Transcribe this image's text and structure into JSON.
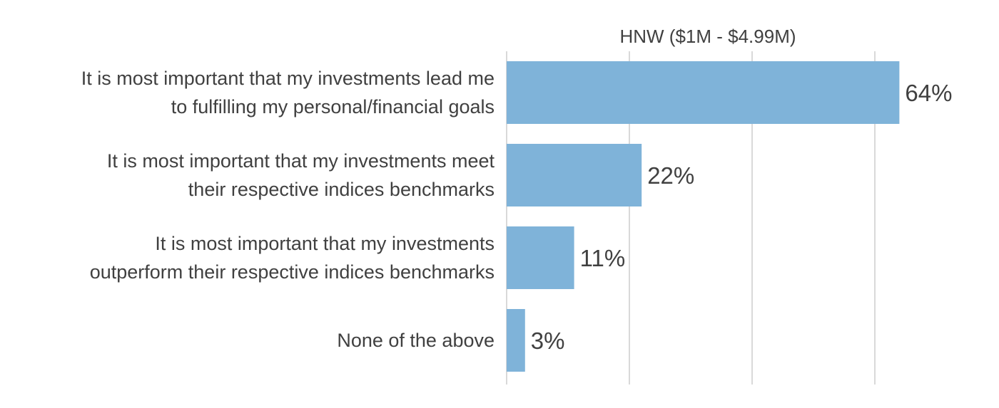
{
  "chart_data": {
    "type": "bar",
    "orientation": "horizontal",
    "title": "HNW ($1M - $4.99M)",
    "xlabel": "",
    "ylabel": "",
    "xlim": [
      0,
      60
    ],
    "grid": true,
    "legend": "none",
    "bar_color": "#7fb3d9",
    "text_color": "#404040",
    "categories": [
      [
        "It is most important that my investments lead me",
        "to fulfilling my personal/financial goals"
      ],
      [
        "It is most important that my investments meet",
        "their respective indices benchmarks"
      ],
      [
        "It is most important that my investments",
        "outperform their respective indices benchmarks"
      ],
      [
        "None of the above"
      ]
    ],
    "values": [
      64,
      22,
      11,
      3
    ],
    "value_labels": [
      "64%",
      "22%",
      "11%",
      "3%"
    ]
  }
}
